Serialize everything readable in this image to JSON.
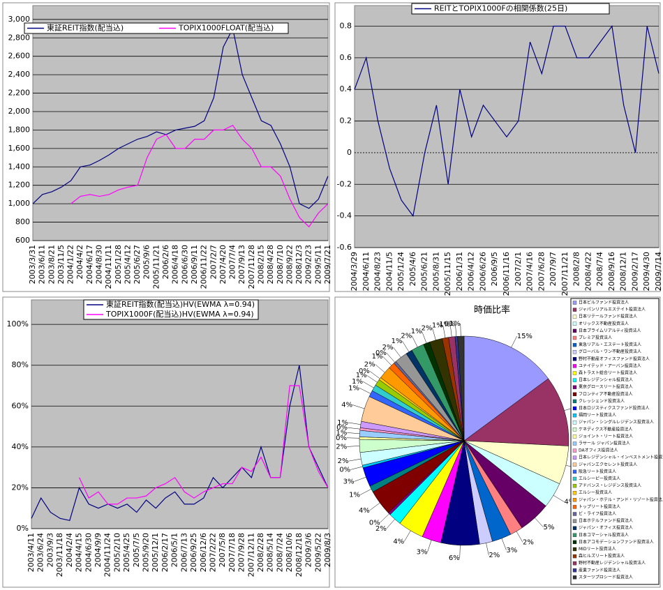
{
  "chart_data": [
    {
      "type": "line",
      "ylim": [
        600,
        3150
      ],
      "yticks": [
        600,
        800,
        {
          "value": 1000,
          "label": "1,000"
        },
        {
          "value": 1200,
          "label": "1,200"
        },
        {
          "value": 1400,
          "label": "1,400"
        },
        {
          "value": 1600,
          "label": "1,600"
        },
        {
          "value": 1800,
          "label": "1,800"
        },
        {
          "value": 2000,
          "label": "2,000"
        },
        {
          "value": 2200,
          "label": "2,200"
        },
        {
          "value": 2400,
          "label": "2,400"
        },
        {
          "value": 2600,
          "label": "2,600"
        },
        {
          "value": 2800,
          "label": "2,800"
        },
        {
          "value": 3000,
          "label": "3,000"
        }
      ],
      "grid": true,
      "legend": "top",
      "categories": [
        "2003/3/31",
        "2003/6/11",
        "2003/8/21",
        "2003/11/5",
        "2004/1/22",
        "2004/4/2",
        "2004/6/17",
        "2004/8/30",
        "2004/11/11",
        "2005/1/28",
        "2005/4/12",
        "2005/6/27",
        "2005/9/6",
        "2005/11/21",
        "2006/2/6",
        "2006/4/18",
        "2006/6/30",
        "2006/9/11",
        "2006/11/22",
        "2007/2/7",
        "2007/4/20",
        "2007/7/4",
        "2007/9/13",
        "2007/11/28",
        "2008/2/15",
        "2008/4/28",
        "2008/7/10",
        "2008/9/22",
        "2008/12/3",
        "2009/2/23",
        "2009/5/11",
        "2009/7/21"
      ],
      "series": [
        {
          "name": "東証REIT指数(配当込)",
          "color": "#000080",
          "values": [
            1000,
            1100,
            1130,
            1180,
            1250,
            1400,
            1420,
            1470,
            1530,
            1600,
            1650,
            1700,
            1730,
            1780,
            1750,
            1800,
            1820,
            1840,
            1900,
            2150,
            2700,
            2900,
            2400,
            2150,
            1900,
            1850,
            1650,
            1400,
            1000,
            950,
            1050,
            1300
          ]
        },
        {
          "name": "TOPIX1000FLOAT(配当込)",
          "color": "#ff00ff",
          "values": [
            null,
            null,
            null,
            null,
            1000,
            1080,
            1100,
            1080,
            1100,
            1150,
            1180,
            1200,
            1500,
            1700,
            1750,
            1600,
            1600,
            1700,
            1700,
            1800,
            1800,
            1850,
            1700,
            1600,
            1400,
            1400,
            1300,
            1050,
            850,
            750,
            900,
            1000
          ]
        }
      ]
    },
    {
      "type": "line",
      "ylim": [
        -0.6,
        0.93
      ],
      "yticks": [
        -0.6,
        -0.4,
        -0.2,
        0,
        0.2,
        0.4,
        0.6,
        0.8
      ],
      "grid": true,
      "legend": "top",
      "categories": [
        "2004/3/29",
        "2004/6/11",
        "2004/8/23",
        "2004/11/5",
        "2005/1/24",
        "2005/4/6",
        "2005/6/21",
        "2005/8/31",
        "2005/11/15",
        "2006/1/31",
        "2006/4/12",
        "2006/6/26",
        "2006/9/5",
        "2006/11/16",
        "2007/2/1",
        "2007/4/16",
        "2007/6/28",
        "2007/9/7",
        "2007/11/21",
        "2008/2/8",
        "2008/4/22",
        "2008/7/4",
        "2008/9/16",
        "2008/12/1",
        "2009/2/17",
        "2009/4/30",
        "2009/7/14"
      ],
      "series": [
        {
          "name": "REITとTOPIX1000Fの相関係数(25日)",
          "color": "#000080",
          "values": [
            0.4,
            0.6,
            0.2,
            -0.1,
            -0.3,
            -0.4,
            0.0,
            0.3,
            -0.2,
            0.4,
            0.1,
            0.3,
            0.2,
            0.1,
            0.2,
            0.7,
            0.5,
            0.8,
            0.8,
            0.6,
            0.6,
            0.7,
            0.8,
            0.3,
            0.0,
            0.8,
            0.5
          ]
        }
      ]
    },
    {
      "type": "line",
      "ylim": [
        0,
        112
      ],
      "yticks": [
        {
          "value": 0,
          "label": "0%"
        },
        {
          "value": 20,
          "label": "20%"
        },
        {
          "value": 40,
          "label": "40%"
        },
        {
          "value": 60,
          "label": "60%"
        },
        {
          "value": 80,
          "label": "80%"
        },
        {
          "value": 100,
          "label": "100%"
        }
      ],
      "grid": true,
      "legend": "top",
      "categories": [
        "2003/4/11",
        "2003/6/24",
        "2003/9/3",
        "2003/11/18",
        "2004/2/4",
        "2004/4/15",
        "2004/6/30",
        "2004/9/9",
        "2004/11/24",
        "2005/2/10",
        "2005/4/25",
        "2005/7/5",
        "2005/9/20",
        "2005/12/1",
        "2006/2/17",
        "2006/5/1",
        "2006/7/13",
        "2006/9/25",
        "2006/12/6",
        "2007/2/22",
        "2007/5/8",
        "2007/7/18",
        "2007/9/28",
        "2007/12/11",
        "2008/2/28",
        "2008/5/14",
        "2008/7/24",
        "2008/10/6",
        "2008/12/18",
        "2009/3/6",
        "2009/5/22",
        "2009/8/3"
      ],
      "series": [
        {
          "name": "東証REIT指数(配当込)HV(EWMA  λ=0.94)",
          "color": "#000080",
          "values": [
            5,
            15,
            8,
            5,
            4,
            20,
            12,
            10,
            12,
            10,
            12,
            8,
            14,
            10,
            15,
            18,
            12,
            12,
            15,
            25,
            20,
            25,
            30,
            25,
            40,
            25,
            25,
            60,
            80,
            40,
            30,
            20
          ]
        },
        {
          "name": "TOPIX1000F(配当込)HV(EWMA  λ=0.94)",
          "color": "#ff00ff",
          "values": [
            null,
            null,
            null,
            null,
            null,
            25,
            15,
            18,
            12,
            12,
            15,
            15,
            16,
            20,
            22,
            25,
            18,
            15,
            18,
            20,
            22,
            22,
            30,
            28,
            35,
            25,
            25,
            70,
            70,
            40,
            28,
            20
          ]
        }
      ]
    },
    {
      "type": "pie",
      "title": "時価比率",
      "legend": "right",
      "categories": [
        "日本ビルファンド投資法人",
        "ジャパンリアルエステイト投資法人",
        "日本リテールファンド投資法人",
        "オリックス不動産投資法人",
        "日本プライムリアルティ投資法人",
        "プレミア投資法人",
        "東急リアル・エステート投資法人",
        "グローバル・ワン不動産投資法人",
        "野村不動産オフィスファンド投資法人",
        "ユナイテッド・アーバン投資法人",
        "森トラスト総合リート投資法人",
        "日本レジデンシャル投資法人",
        "東京グロースリート投資法人",
        "フロンティア不動産投資法人",
        "クレッシェンド投資法人",
        "日本ロジスティクスファンド投資法人",
        "福岡リート投資法人",
        "ジャパン・シングルレジデンス投資法人",
        "ケネディクス不動産投資法人",
        "ジョイント・リート投資法人",
        "ラサール ジャパン投資法人",
        "DAオフィス投資法人",
        "日本レジデンシャル・インベストメント投資法人",
        "ジャパンエクセレント投資法人",
        "阪急リート投資法人",
        "エルシーピー投資法人",
        "アドバンス・レジデンス投資法人",
        "エルシー投資法人",
        "ジャパン・ホテル・アンド・リゾート投資法人",
        "トップリート投資法人",
        "ビ・ライフ投資法人",
        "日本ホテルファンド投資法人",
        "ジャパン・オフィス投資法人",
        "日本コマーシャル投資法人",
        "日本アコモデーションファンド投資法人",
        "MIDリート投資法人",
        "森ヒルズリート投資法人",
        "野村不動産レジデンシャル投資法人",
        "産業ファンド投資法人",
        "スターツプロシード投資法人"
      ],
      "colors": [
        "#9999ff",
        "#993366",
        "#ffffcc",
        "#ccffff",
        "#660066",
        "#ff8080",
        "#0066cc",
        "#ccccff",
        "#000080",
        "#ff00ff",
        "#ffff00",
        "#00ffff",
        "#800080",
        "#800000",
        "#008080",
        "#0000ff",
        "#00ccff",
        "#ccffff",
        "#ccffcc",
        "#ffff99",
        "#99ccff",
        "#ff99cc",
        "#cc99ff",
        "#ffcc99",
        "#3366ff",
        "#33cccc",
        "#99cc00",
        "#ffcc00",
        "#ff9900",
        "#ff6600",
        "#666699",
        "#969696",
        "#003366",
        "#339966",
        "#003300",
        "#333300",
        "#993300",
        "#993366",
        "#333399",
        "#333333"
      ],
      "values": [
        15,
        11,
        6,
        4,
        5,
        2,
        3,
        2,
        6,
        3,
        4,
        2,
        0.4,
        4,
        1,
        3,
        0.4,
        2,
        2,
        0.4,
        1,
        0.4,
        1,
        4,
        1,
        1,
        1,
        0.4,
        2,
        1,
        0.4,
        2,
        1,
        2,
        1,
        2,
        1,
        1,
        0.4,
        1
      ],
      "value_labels": [
        "15%",
        "11%",
        "6%",
        "4%",
        "5%",
        "2%",
        "3%",
        "2%",
        "6%",
        "3%",
        "4%",
        "2%",
        "0%",
        "4%",
        "1%",
        "3%",
        "0%",
        "2%",
        "2%",
        "0%",
        "1%",
        "0%",
        "1%",
        "4%",
        "1%",
        "1%",
        "1%",
        "0%",
        "2%",
        "1%",
        "0%",
        "2%",
        "1%",
        "2%",
        "1%",
        "2%",
        "1%",
        "1%",
        "0%",
        "1%"
      ]
    }
  ]
}
